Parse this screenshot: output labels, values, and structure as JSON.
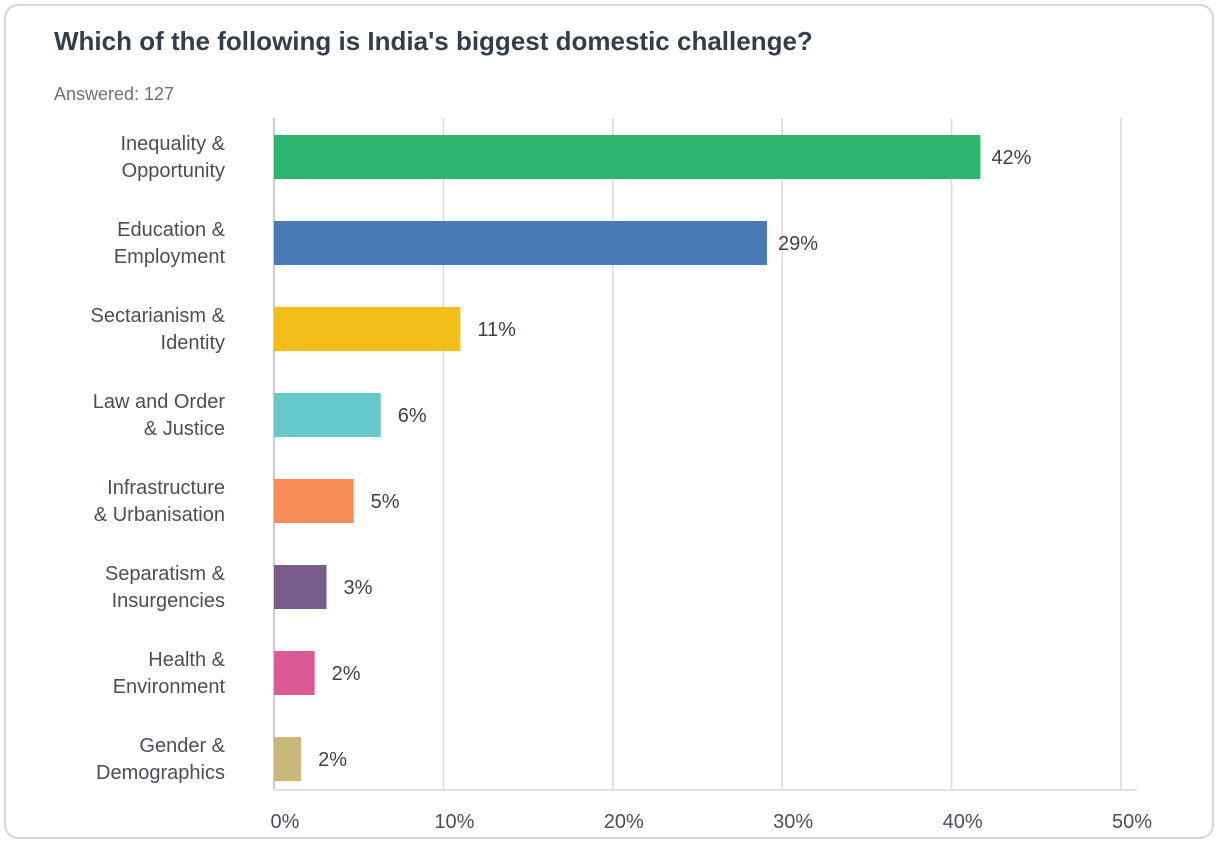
{
  "chart_data": {
    "type": "bar",
    "orientation": "horizontal",
    "title": "Which of the following is India's biggest domestic challenge?",
    "subtitle": "Answered: 127",
    "categories": [
      [
        "Inequality &",
        "Opportunity"
      ],
      [
        "Education &",
        "Employment"
      ],
      [
        "Sectarianism &",
        "Identity"
      ],
      [
        "Law and Order",
        "& Justice"
      ],
      [
        "Infrastructure",
        "& Urbanisation"
      ],
      [
        "Separatism &",
        "Insurgencies"
      ],
      [
        "Health &",
        "Environment"
      ],
      [
        "Gender &",
        "Demographics"
      ]
    ],
    "values": [
      41.7,
      29.1,
      11.0,
      6.3,
      4.7,
      3.1,
      2.4,
      1.6
    ],
    "value_labels": [
      "42%",
      "29%",
      "11%",
      "6%",
      "5%",
      "3%",
      "2%",
      "2%"
    ],
    "colors": [
      "#2db56d",
      "#4a7ab5",
      "#f4be1a",
      "#67c8c9",
      "#f78c56",
      "#7b5d8c",
      "#d95a95",
      "#c9b878"
    ],
    "xlim": [
      0,
      50
    ],
    "x_ticks": [
      0,
      10,
      20,
      30,
      40,
      50
    ],
    "x_tick_labels": [
      "0%",
      "10%",
      "20%",
      "30%",
      "40%",
      "50%"
    ],
    "xlabel": "",
    "ylabel": "",
    "grid": "vertical",
    "legend": "none"
  }
}
